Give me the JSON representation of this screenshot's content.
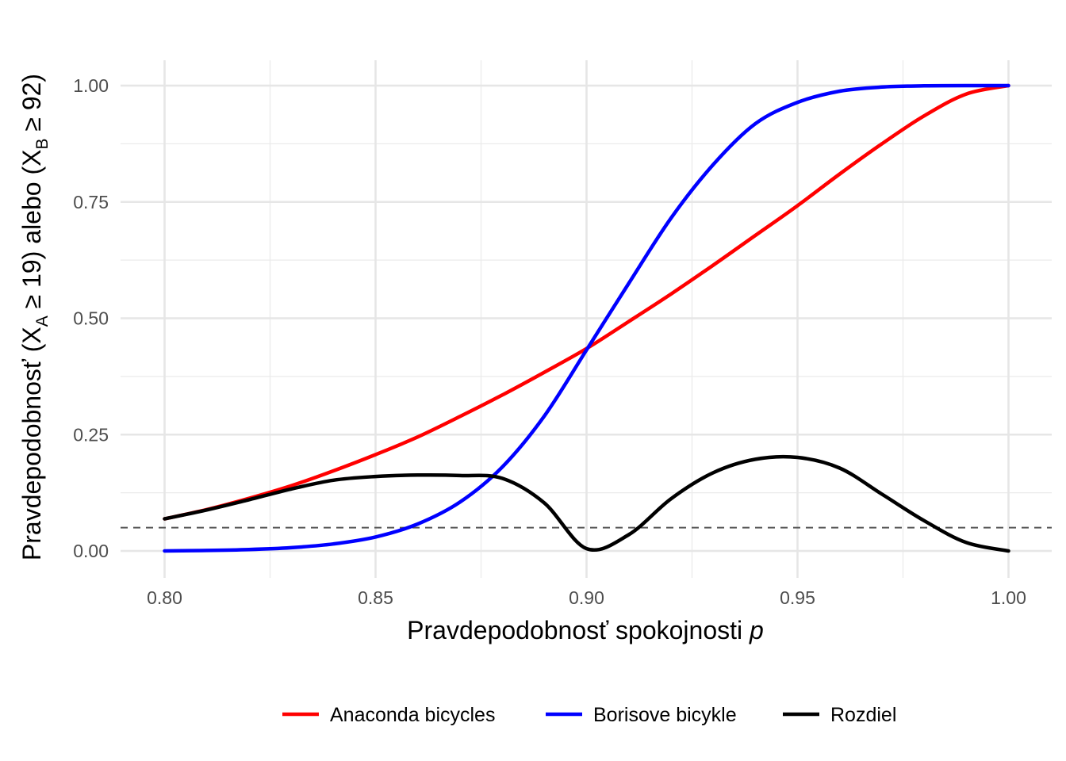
{
  "chart_data": {
    "type": "line",
    "xlabel": "Pravdepodobnosť spokojnosti",
    "xlabel_var": "p",
    "ylabel": {
      "pre": "Pravdepodobnosť (X",
      "sub_a": "A",
      "mid": " ≥ 19) alebo (X",
      "sub_b": "B",
      "post": " ≥ 92)"
    },
    "xlim": [
      0.8,
      1.0
    ],
    "ylim": [
      0.0,
      1.0
    ],
    "x_ticks": [
      "0.80",
      "0.85",
      "0.90",
      "0.95",
      "1.00"
    ],
    "y_ticks": [
      "0.00",
      "0.25",
      "0.50",
      "0.75",
      "1.00"
    ],
    "grid": true,
    "legend_position": "bottom",
    "reference_line": {
      "y": 0.05,
      "style": "dashed",
      "color": "#555555"
    },
    "x": [
      0.8,
      0.81,
      0.82,
      0.83,
      0.84,
      0.85,
      0.86,
      0.87,
      0.88,
      0.89,
      0.9,
      0.91,
      0.92,
      0.93,
      0.94,
      0.95,
      0.96,
      0.97,
      0.98,
      0.99,
      1.0
    ],
    "series": [
      {
        "name": "Anaconda bicycles",
        "color": "#ff0000",
        "values": [
          0.069,
          0.089,
          0.113,
          0.14,
          0.172,
          0.207,
          0.245,
          0.289,
          0.335,
          0.384,
          0.435,
          0.493,
          0.552,
          0.614,
          0.678,
          0.742,
          0.81,
          0.875,
          0.935,
          0.982,
          1.0
        ]
      },
      {
        "name": "Borisove bicykle",
        "color": "#0000ff",
        "values": [
          0.0,
          0.001,
          0.003,
          0.007,
          0.015,
          0.03,
          0.058,
          0.105,
          0.18,
          0.29,
          0.432,
          0.575,
          0.715,
          0.83,
          0.918,
          0.964,
          0.988,
          0.997,
          0.9995,
          1.0,
          1.0
        ]
      },
      {
        "name": "Rozdiel",
        "color": "#000000",
        "values": [
          0.069,
          0.088,
          0.11,
          0.133,
          0.152,
          0.16,
          0.163,
          0.162,
          0.156,
          0.103,
          0.005,
          0.035,
          0.112,
          0.168,
          0.197,
          0.201,
          0.178,
          0.122,
          0.065,
          0.018,
          0.0
        ]
      }
    ]
  }
}
